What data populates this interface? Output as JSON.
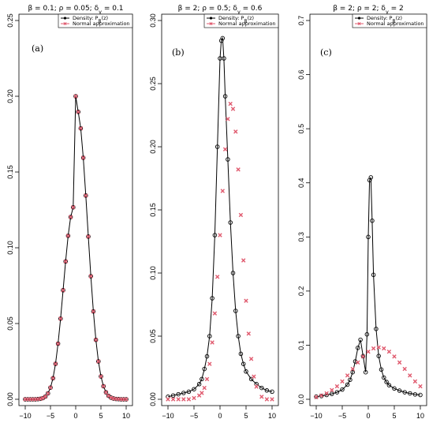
{
  "chart_data": [
    {
      "type": "line",
      "title": "β = 0.1;  ρ = 0.05;  δ_y = 0.1",
      "panel_label": "(a)",
      "xlim": [
        -10,
        10
      ],
      "ylim": [
        0,
        0.25
      ],
      "x_ticks": [
        -10,
        -5,
        0,
        5,
        10
      ],
      "y_ticks": [
        0.0,
        0.05,
        0.1,
        0.15,
        0.2,
        0.25
      ],
      "y_tick_labels": [
        "0.00",
        "0.05",
        "0.10",
        "0.15",
        "0.20",
        "0.25"
      ],
      "legend": {
        "position": "top-right",
        "entries": [
          "Density:  P_β(z)",
          "Normal approximation"
        ]
      },
      "series": [
        {
          "name": "Density:  P_β(z)",
          "color": "#000000",
          "marker": "circle",
          "x": [
            -10,
            -9.5,
            -9,
            -8.5,
            -8,
            -7.5,
            -7,
            -6.5,
            -6,
            -5.5,
            -5,
            -4.5,
            -4,
            -3.5,
            -3,
            -2.5,
            -2,
            -1.5,
            -1,
            -0.5,
            0,
            0.5,
            1,
            1.5,
            2,
            2.5,
            3,
            3.5,
            4,
            4.5,
            5,
            5.5,
            6,
            6.5,
            7,
            7.5,
            8,
            8.5,
            9,
            9.5,
            10
          ],
          "y": [
            0.0,
            0.0,
            0.0,
            0.0,
            0.0,
            0.0001,
            0.0003,
            0.0008,
            0.0018,
            0.0039,
            0.0077,
            0.0139,
            0.0234,
            0.0367,
            0.0532,
            0.072,
            0.091,
            0.1079,
            0.1203,
            0.1267,
            0.2,
            0.1897,
            0.1788,
            0.1594,
            0.1345,
            0.1074,
            0.0812,
            0.058,
            0.0392,
            0.025,
            0.0151,
            0.0086,
            0.0046,
            0.0023,
            0.0011,
            0.0005,
            0.0002,
            0.0001,
            0.0,
            0.0,
            0.0
          ]
        },
        {
          "name": "Normal approximation",
          "color": "#e05a6e",
          "marker": "cross",
          "x": [
            -10,
            -9.5,
            -9,
            -8.5,
            -8,
            -7.5,
            -7,
            -6.5,
            -6,
            -5.5,
            -5,
            -4.5,
            -4,
            -3.5,
            -3,
            -2.5,
            -2,
            -1.5,
            -1,
            -0.5,
            0,
            0.5,
            1,
            1.5,
            2,
            2.5,
            3,
            3.5,
            4,
            4.5,
            5,
            5.5,
            6,
            6.5,
            7,
            7.5,
            8,
            8.5,
            9,
            9.5,
            10
          ],
          "y": [
            0.0,
            0.0,
            0.0,
            0.0,
            0.0,
            0.0001,
            0.0003,
            0.0008,
            0.0018,
            0.0039,
            0.0077,
            0.0139,
            0.0234,
            0.0367,
            0.0532,
            0.072,
            0.091,
            0.1079,
            0.1203,
            0.1267,
            0.2,
            0.1897,
            0.1788,
            0.1594,
            0.1345,
            0.1074,
            0.0812,
            0.058,
            0.0392,
            0.025,
            0.0151,
            0.0086,
            0.0046,
            0.0023,
            0.0011,
            0.0005,
            0.0002,
            0.0001,
            0.0,
            0.0,
            0.0
          ]
        }
      ]
    },
    {
      "type": "line",
      "title": "β = 2;  ρ = 0.5;  δ_y = 0.6",
      "panel_label": "(b)",
      "xlim": [
        -10,
        10
      ],
      "ylim": [
        0,
        0.3
      ],
      "x_ticks": [
        -10,
        -5,
        0,
        5,
        10
      ],
      "y_ticks": [
        0.0,
        0.05,
        0.1,
        0.15,
        0.2,
        0.25,
        0.3
      ],
      "y_tick_labels": [
        "0.00",
        "0.05",
        "0.10",
        "0.15",
        "0.20",
        "0.25",
        "0.30"
      ],
      "legend": {
        "position": "top-right",
        "entries": [
          "Density:  P_β(z)",
          "Normal approximation"
        ]
      },
      "series": [
        {
          "name": "Density:  P_β(z)",
          "color": "#000000",
          "marker": "circle",
          "x": [
            -10,
            -9,
            -8,
            -7,
            -6,
            -5,
            -4,
            -3.5,
            -3,
            -2.5,
            -2,
            -1.5,
            -1,
            -0.5,
            0,
            0.25,
            0.5,
            0.75,
            1,
            1.5,
            2,
            2.5,
            3,
            3.5,
            4,
            4.5,
            5,
            6,
            7,
            8,
            9,
            10
          ],
          "y": [
            0.002,
            0.003,
            0.004,
            0.005,
            0.006,
            0.008,
            0.012,
            0.016,
            0.024,
            0.034,
            0.05,
            0.08,
            0.13,
            0.2,
            0.27,
            0.284,
            0.286,
            0.27,
            0.24,
            0.19,
            0.14,
            0.1,
            0.07,
            0.05,
            0.036,
            0.028,
            0.022,
            0.016,
            0.012,
            0.009,
            0.007,
            0.006
          ]
        },
        {
          "name": "Normal approximation",
          "color": "#e05a6e",
          "marker": "cross",
          "x": [
            -10,
            -9,
            -8,
            -7,
            -6,
            -5,
            -4,
            -3.5,
            -3,
            -2.5,
            -2,
            -1.5,
            -1,
            -0.5,
            0,
            0.5,
            1,
            1.5,
            2,
            2.5,
            3,
            3.5,
            4,
            4.5,
            5,
            5.5,
            6,
            6.5,
            7,
            8,
            9,
            10
          ],
          "y": [
            0.0,
            0.0,
            0.0,
            0.0,
            0.0,
            0.001,
            0.003,
            0.005,
            0.009,
            0.016,
            0.028,
            0.045,
            0.068,
            0.097,
            0.13,
            0.165,
            0.198,
            0.222,
            0.234,
            0.23,
            0.212,
            0.182,
            0.146,
            0.11,
            0.078,
            0.052,
            0.032,
            0.018,
            0.01,
            0.002,
            0.0,
            0.0
          ]
        }
      ]
    },
    {
      "type": "line",
      "title": "β = 2;  ρ = 2;  δ_y = 2",
      "panel_label": "(c)",
      "xlim": [
        -10,
        10
      ],
      "ylim": [
        0,
        0.7
      ],
      "x_ticks": [
        -10,
        -5,
        0,
        5,
        10
      ],
      "y_ticks": [
        0.0,
        0.1,
        0.2,
        0.3,
        0.4,
        0.5,
        0.6,
        0.7
      ],
      "y_tick_labels": [
        "0.0",
        "0.1",
        "0.2",
        "0.3",
        "0.4",
        "0.5",
        "0.6",
        "0.7"
      ],
      "legend": {
        "position": "top-right",
        "entries": [
          "Density:  P_β(z)",
          "Normal approximation"
        ]
      },
      "series": [
        {
          "name": "Density:  P_β(z)",
          "color": "#000000",
          "marker": "circle",
          "x": [
            -10,
            -9,
            -8,
            -7,
            -6,
            -5,
            -4,
            -3.5,
            -3,
            -2.5,
            -2,
            -1.5,
            -1,
            -0.5,
            -0.25,
            0,
            0.25,
            0.5,
            0.75,
            1,
            1.5,
            2,
            2.5,
            3,
            3.5,
            4,
            5,
            6,
            7,
            8,
            9,
            10
          ],
          "y": [
            0.005,
            0.006,
            0.008,
            0.01,
            0.013,
            0.018,
            0.027,
            0.036,
            0.05,
            0.07,
            0.095,
            0.11,
            0.08,
            0.05,
            0.12,
            0.3,
            0.405,
            0.41,
            0.33,
            0.23,
            0.13,
            0.08,
            0.055,
            0.04,
            0.032,
            0.026,
            0.02,
            0.016,
            0.013,
            0.011,
            0.009,
            0.008
          ]
        },
        {
          "name": "Normal approximation",
          "color": "#e05a6e",
          "marker": "cross",
          "x": [
            -10,
            -9,
            -8,
            -7,
            -6,
            -5,
            -4,
            -3,
            -2,
            -1,
            0,
            1,
            2,
            3,
            4,
            5,
            6,
            7,
            8,
            9,
            10
          ],
          "y": [
            0.004,
            0.007,
            0.011,
            0.017,
            0.024,
            0.033,
            0.044,
            0.056,
            0.068,
            0.079,
            0.088,
            0.094,
            0.096,
            0.094,
            0.088,
            0.079,
            0.068,
            0.056,
            0.044,
            0.033,
            0.024
          ]
        }
      ]
    }
  ]
}
